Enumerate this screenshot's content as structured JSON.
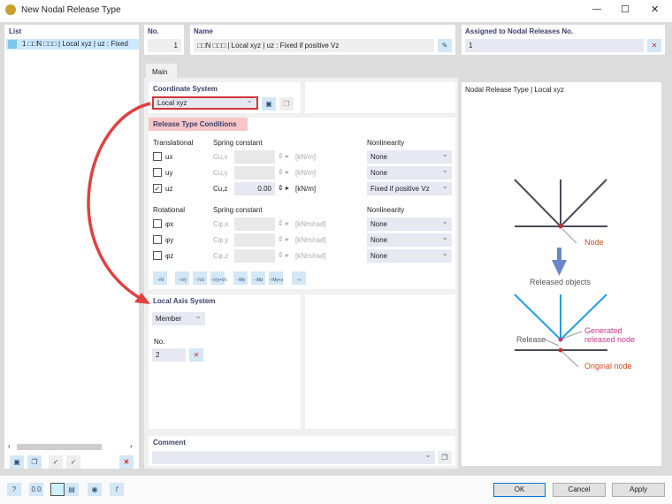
{
  "window": {
    "title": "New Nodal Release Type",
    "minimize": "—",
    "maximize": "☐",
    "close": "✕"
  },
  "list": {
    "header": "List",
    "items": [
      {
        "label": "1 □□N □□□ | Local xyz | uz : Fixed"
      }
    ]
  },
  "no": {
    "label": "No.",
    "value": "1"
  },
  "name": {
    "label": "Name",
    "value": "□□N □□□ | Local xyz | uz : Fixed if positive Vz"
  },
  "assigned": {
    "label": "Assigned to Nodal Releases No.",
    "value": "1"
  },
  "tabs": [
    {
      "label": "Main"
    }
  ],
  "coordinate_system": {
    "header": "Coordinate System",
    "value": "Local xyz"
  },
  "release": {
    "header": "Release Type Conditions",
    "translational": {
      "label": "Translational",
      "spring_label": "Spring constant",
      "nonlin_label": "Nonlinearity",
      "rows": [
        {
          "dof": "ux",
          "checked": false,
          "spring": "Cu,x",
          "value": "",
          "unit": "[kN/m]",
          "nonlin": "None"
        },
        {
          "dof": "uy",
          "checked": false,
          "spring": "Cu,y",
          "value": "",
          "unit": "[kN/m]",
          "nonlin": "None"
        },
        {
          "dof": "uz",
          "checked": true,
          "spring": "Cu,z",
          "value": "0.00",
          "unit": "[kN/m]",
          "nonlin": "Fixed if positive Vz"
        }
      ]
    },
    "rotational": {
      "label": "Rotational",
      "spring_label": "Spring constant",
      "nonlin_label": "Nonlinearity",
      "rows": [
        {
          "dof": "φx",
          "checked": false,
          "spring": "Cφ,x",
          "value": "",
          "unit": "[kNm/rad]",
          "nonlin": "None"
        },
        {
          "dof": "φy",
          "checked": false,
          "spring": "Cφ,y",
          "value": "",
          "unit": "[kNm/rad]",
          "nonlin": "None"
        },
        {
          "dof": "φz",
          "checked": false,
          "spring": "Cφ,z",
          "value": "",
          "unit": "[kNm/rad]",
          "nonlin": "None"
        }
      ]
    },
    "preset_buttons": [
      "N",
      "Vy",
      "Vz",
      "Vy+Vz",
      "My",
      "Mz",
      "My+z",
      "-"
    ]
  },
  "local_axis": {
    "header": "Local Axis System",
    "type": "Member",
    "no_label": "No.",
    "no_value": "2"
  },
  "graphic": {
    "title": "Nodal Release Type | Local xyz",
    "node": "Node",
    "released_objects": "Released objects",
    "release": "Release",
    "generated": "Generated",
    "generated2": "released node",
    "original": "Original node"
  },
  "comment": {
    "label": "Comment",
    "value": ""
  },
  "buttons": {
    "ok": "OK",
    "cancel": "Cancel",
    "apply": "Apply"
  },
  "colors": {
    "accent_red": "#e04040",
    "blue_member": "#1fa0e0",
    "node_label": "#d04a1a",
    "generated_label": "#c03a8a"
  }
}
